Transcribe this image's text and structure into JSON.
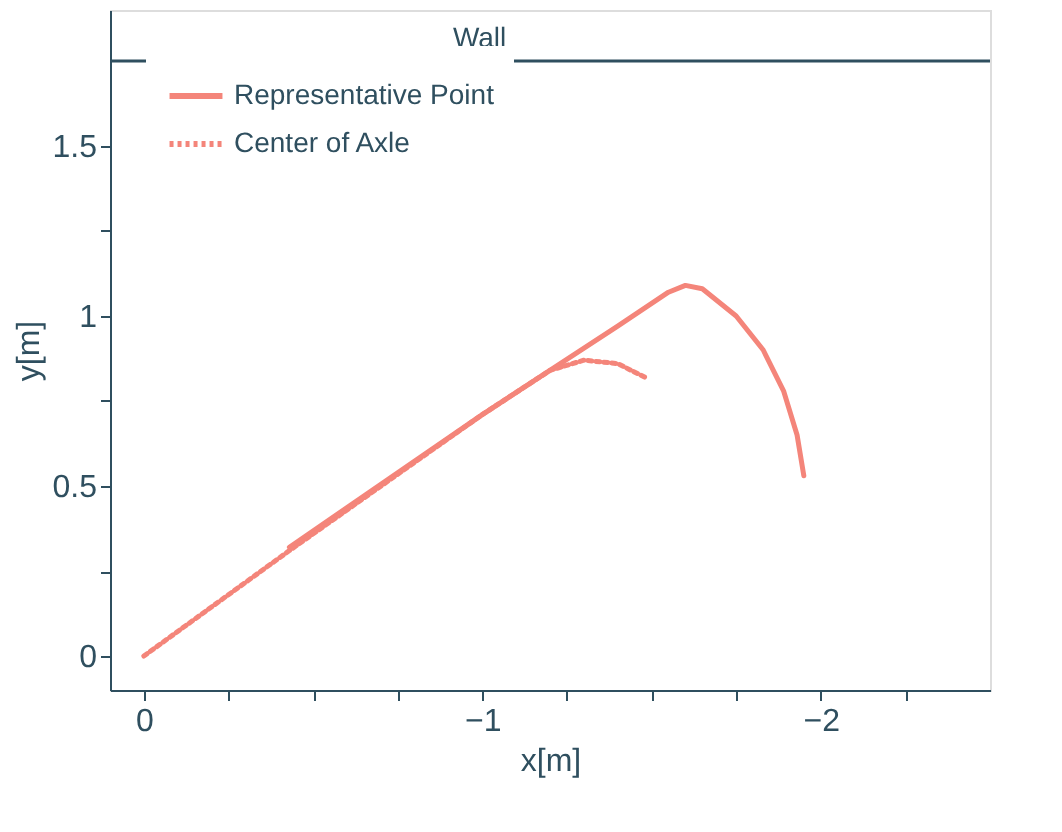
{
  "chart_data": {
    "type": "line",
    "xlabel": "x[m]",
    "ylabel": "y[m]",
    "xlim": [
      0.1,
      -2.5
    ],
    "ylim": [
      -0.1,
      1.9
    ],
    "xticks": [
      0,
      {
        "value": -0.25,
        "label": null
      },
      {
        "value": -0.5,
        "label": null
      },
      {
        "value": -0.75,
        "label": null
      },
      -1,
      {
        "value": -1.25,
        "label": null
      },
      {
        "value": -1.5,
        "label": null
      },
      {
        "value": -1.75,
        "label": null
      },
      -2,
      {
        "value": -2.25,
        "label": null
      }
    ],
    "yticks": [
      0,
      {
        "value": 0.25,
        "label": null
      },
      0.5,
      {
        "value": 0.75,
        "label": null
      },
      1,
      {
        "value": 1.25,
        "label": null
      },
      1.5
    ],
    "grid": false,
    "legend": "top left",
    "series": [
      {
        "name": "Representative Point",
        "color": "#f4857a",
        "line_style": "solid",
        "x": [
          -0.43,
          -1.0,
          -1.4,
          -1.55,
          -1.6,
          -1.65,
          -1.75,
          -1.83,
          -1.89,
          -1.93,
          -1.95
        ],
        "values": [
          0.32,
          0.71,
          0.97,
          1.07,
          1.09,
          1.08,
          1.0,
          0.9,
          0.78,
          0.65,
          0.53
        ]
      },
      {
        "name": "Center of Axle",
        "color": "#f4857a",
        "line_style": "dotted",
        "x": [
          0,
          -0.43,
          -1.0,
          -1.2,
          -1.3,
          -1.4,
          -1.48
        ],
        "values": [
          0,
          0.31,
          0.71,
          0.84,
          0.87,
          0.86,
          0.82
        ]
      }
    ],
    "ref_lines": [
      {
        "axis": "y",
        "value": 1.75,
        "label": "Wall",
        "color": "#2f4f5f",
        "line_style": "solid"
      }
    ]
  }
}
